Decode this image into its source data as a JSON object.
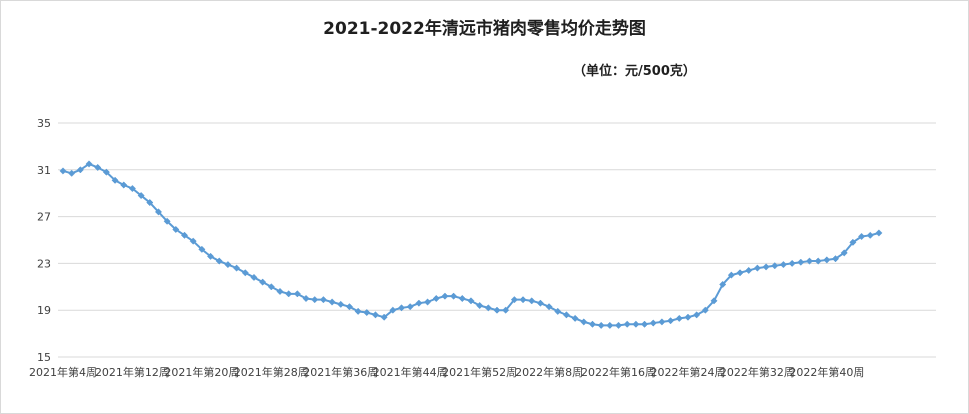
{
  "chart_data": {
    "type": "line",
    "title": "2021-2022年清远市猪肉零售均价走势图",
    "subtitle": "（单位：元/500克）",
    "xlabel": "",
    "ylabel": "",
    "ylim": [
      15,
      35
    ],
    "yticks": [
      15,
      19,
      23,
      27,
      31,
      35
    ],
    "grid": true,
    "legend": "none",
    "line_color": "#5b9bd5",
    "grid_color": "#d9d9d9",
    "x_tick_labels": [
      {
        "index": 0,
        "label": "2021年第4周"
      },
      {
        "index": 8,
        "label": "2021年第12周"
      },
      {
        "index": 16,
        "label": "2021年第20周"
      },
      {
        "index": 24,
        "label": "2021年第28周"
      },
      {
        "index": 32,
        "label": "2021年第36周"
      },
      {
        "index": 40,
        "label": "2021年第44周"
      },
      {
        "index": 48,
        "label": "2021年第52周"
      },
      {
        "index": 56,
        "label": "2022年第8周"
      },
      {
        "index": 64,
        "label": "2022年第16周"
      },
      {
        "index": 72,
        "label": "2022年第24周"
      },
      {
        "index": 80,
        "label": "2022年第32周"
      },
      {
        "index": 88,
        "label": "2022年第40周"
      }
    ],
    "series": [
      {
        "values": [
          30.9,
          30.7,
          31.0,
          31.5,
          31.2,
          30.8,
          30.1,
          29.7,
          29.4,
          28.8,
          28.2,
          27.4,
          26.6,
          25.9,
          25.4,
          24.9,
          24.2,
          23.6,
          23.2,
          22.9,
          22.6,
          22.2,
          21.8,
          21.4,
          21.0,
          20.6,
          20.4,
          20.4,
          20.0,
          19.9,
          19.9,
          19.7,
          19.5,
          19.3,
          18.9,
          18.8,
          18.6,
          18.4,
          19.0,
          19.2,
          19.3,
          19.6,
          19.7,
          20.0,
          20.2,
          20.2,
          20.0,
          19.8,
          19.4,
          19.2,
          19.0,
          19.0,
          19.9,
          19.9,
          19.8,
          19.6,
          19.3,
          18.9,
          18.6,
          18.3,
          18.0,
          17.8,
          17.7,
          17.7,
          17.7,
          17.8,
          17.8,
          17.8,
          17.9,
          18.0,
          18.1,
          18.3,
          18.4,
          18.6,
          19.0,
          19.8,
          21.2,
          22.0,
          22.2,
          22.4,
          22.6,
          22.7,
          22.8,
          22.9,
          23.0,
          23.1,
          23.2,
          23.2,
          23.3,
          23.4,
          23.9,
          24.8,
          25.3,
          25.4,
          25.6
        ]
      }
    ]
  }
}
